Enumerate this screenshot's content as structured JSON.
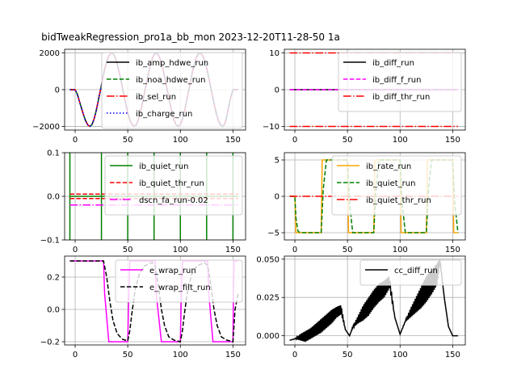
{
  "figure": {
    "title": "bidTweakRegression_pro1a_bb_mon   2023-12-20T11-28-50 1a"
  },
  "chart_data": [
    {
      "type": "line",
      "grid": true,
      "legend_loc": "upper-right",
      "xlim": [
        -10,
        162
      ],
      "ylim": [
        -2200,
        2200
      ],
      "xticks": [
        0,
        50,
        100,
        150
      ],
      "yticks": [
        -2000,
        0,
        2000
      ],
      "series": [
        {
          "name": "ib_amp_hdwe_run",
          "color": "#000000",
          "style": "solid",
          "width": 1.5,
          "x": [
            -5,
            -2,
            0,
            2,
            4,
            6,
            8,
            10,
            12,
            14,
            16,
            18,
            20,
            22,
            24,
            26,
            28,
            30,
            32,
            34,
            36,
            38,
            40,
            42,
            44,
            46,
            48,
            50,
            52,
            54,
            56,
            58,
            60,
            62,
            64,
            66,
            68,
            70,
            72,
            74,
            76,
            78,
            80,
            82,
            84,
            86,
            88,
            90,
            92,
            94,
            96,
            98,
            100,
            102,
            104,
            106,
            108,
            110,
            112,
            114,
            116,
            118,
            120,
            122,
            124,
            126,
            128,
            130,
            132,
            134,
            136,
            138,
            140,
            142,
            144,
            146,
            148,
            150,
            152,
            155
          ],
          "y": [
            0,
            0,
            0,
            -240,
            -620,
            -1000,
            -1380,
            -1700,
            -1920,
            -2000,
            -1900,
            -1600,
            -1150,
            -600,
            -30,
            550,
            1100,
            1550,
            1850,
            2000,
            1960,
            1760,
            1400,
            920,
            380,
            -200,
            -750,
            -1250,
            -1650,
            -1900,
            -2000,
            -1920,
            -1650,
            -1250,
            -720,
            -150,
            430,
            980,
            1450,
            1800,
            1980,
            1990,
            1800,
            1450,
            980,
            420,
            -150,
            -720,
            -1230,
            -1650,
            -1920,
            -2000,
            -1900,
            -1600,
            -1150,
            -600,
            -30,
            550,
            1100,
            1550,
            1850,
            2000,
            1960,
            1760,
            1400,
            920,
            380,
            -200,
            -750,
            -1250,
            -1650,
            -1900,
            -2000,
            -1900,
            -1500,
            -900,
            -400,
            0,
            0,
            0
          ]
        },
        {
          "name": "ib_noa_hdwe_run",
          "color": "#008000",
          "style": "dashed",
          "width": 1.5,
          "same_as": 0
        },
        {
          "name": "ib_sel_run",
          "color": "#ff0000",
          "style": "dashdot",
          "width": 1.5,
          "same_as": 0
        },
        {
          "name": "ib_charge_run",
          "color": "#0000ff",
          "style": "dotted",
          "width": 1.5,
          "same_as": 0
        }
      ]
    },
    {
      "type": "line",
      "grid": true,
      "legend_loc": "center-right",
      "xlim": [
        -10,
        162
      ],
      "ylim": [
        -11,
        11
      ],
      "xticks": [
        0,
        50,
        100,
        150
      ],
      "yticks": [
        -10,
        0,
        10
      ],
      "series": [
        {
          "name": "ib_diff_run",
          "color": "#000000",
          "style": "solid",
          "width": 1.5,
          "x": [
            -5,
            155
          ],
          "y": [
            0,
            0
          ]
        },
        {
          "name": "ib_diff_f_run",
          "color": "#ff00ff",
          "style": "dashed",
          "width": 1.5,
          "x": [
            -5,
            155
          ],
          "y": [
            0,
            0
          ]
        },
        {
          "name": "ib_diff_thr_run",
          "color": "#ff0000",
          "style": "dashdot",
          "width": 1.5,
          "x": [
            -5,
            155
          ],
          "y": [
            10,
            10
          ],
          "mirror": true
        }
      ]
    },
    {
      "type": "line",
      "grid": true,
      "legend_loc": "upper-right",
      "xlim": [
        -10,
        162
      ],
      "ylim": [
        -0.1,
        0.1
      ],
      "xticks": [
        0,
        50,
        100,
        150
      ],
      "yticks": [
        -0.1,
        0.0,
        0.1
      ],
      "series": [
        {
          "name": "ib_quiet_run",
          "color": "#008000",
          "style": "solid",
          "width": 1.5,
          "spikes_x": [
            -5,
            25,
            50,
            75,
            100,
            125,
            150
          ],
          "baseline": 0
        },
        {
          "name": "ib_quiet_thr_run",
          "color": "#ff0000",
          "style": "dashed",
          "width": 1.5,
          "x": [
            -5,
            155
          ],
          "y": [
            0.005,
            0.005
          ],
          "mirror": true
        },
        {
          "name": "dscn_fa_run-0.02",
          "color": "#ff00ff",
          "style": "dashdot",
          "width": 1.5,
          "x": [
            -5,
            155
          ],
          "y": [
            -0.02,
            -0.02
          ]
        }
      ]
    },
    {
      "type": "line",
      "grid": true,
      "legend_loc": "upper-right",
      "xlim": [
        -10,
        162
      ],
      "ylim": [
        -6,
        6
      ],
      "xticks": [
        0,
        50,
        100,
        150
      ],
      "yticks": [
        -5,
        0,
        5
      ],
      "series": [
        {
          "name": "ib_rate_run",
          "color": "#ffa500",
          "style": "solid",
          "width": 1.5,
          "x": [
            -5,
            0,
            0.5,
            1,
            25,
            25.5,
            26,
            50,
            50.5,
            51,
            75,
            75.5,
            76,
            100,
            100.5,
            101,
            125,
            125.5,
            126,
            150,
            150.5,
            151,
            155
          ],
          "y": [
            0,
            0,
            -2.5,
            -5,
            -5,
            0,
            5,
            5,
            0,
            -5,
            -5,
            0,
            5,
            5,
            0,
            -5,
            -5,
            0,
            5,
            5,
            0,
            -5,
            -5
          ]
        },
        {
          "name": "ib_quiet_run",
          "color": "#008000",
          "style": "dashed",
          "width": 1.5,
          "x": [
            -5,
            0,
            1,
            3,
            5,
            25,
            27,
            30,
            50,
            52,
            55,
            75,
            77,
            80,
            100,
            102,
            105,
            125,
            127,
            130,
            150,
            152,
            155
          ],
          "y": [
            0,
            0,
            -3,
            -4.8,
            -5,
            -5,
            1,
            5,
            5,
            -1,
            -5,
            -5,
            1,
            5,
            5,
            -1,
            -5,
            -5,
            1,
            5,
            5,
            -1,
            -5
          ]
        },
        {
          "name": "ib_quiet_thr_run",
          "color": "#ff0000",
          "style": "dashdot",
          "width": 1.5,
          "x": [
            -5,
            155
          ],
          "y": [
            0,
            0
          ]
        }
      ]
    },
    {
      "type": "line",
      "grid": true,
      "legend_loc": "upper-right",
      "xlim": [
        -10,
        162
      ],
      "ylim": [
        -0.22,
        0.33
      ],
      "xticks": [
        0,
        50,
        100,
        150
      ],
      "yticks": [
        -0.2,
        0.0,
        0.2
      ],
      "series": [
        {
          "name": "e_wrap_run",
          "color": "#ff00ff",
          "style": "solid",
          "width": 1.5,
          "x": [
            -5,
            27,
            28,
            32,
            50,
            51,
            52,
            76,
            77,
            82,
            100,
            101,
            102,
            126,
            127,
            131,
            150,
            150.5,
            151,
            155
          ],
          "y": [
            0.3,
            0.3,
            0.1,
            -0.2,
            -0.2,
            0.1,
            0.3,
            0.3,
            0.1,
            -0.2,
            -0.2,
            0.1,
            0.3,
            0.3,
            0.1,
            -0.2,
            -0.2,
            0.1,
            0.3,
            0.3
          ]
        },
        {
          "name": "e_wrap_filt_run",
          "color": "#000000",
          "style": "dashed",
          "width": 1.5,
          "x": [
            -5,
            27,
            30,
            33,
            36,
            40,
            45,
            50,
            52,
            54,
            57,
            61,
            66,
            73,
            76,
            79,
            82,
            85,
            89,
            94,
            100,
            102,
            104,
            107,
            111,
            116,
            123,
            126,
            129,
            132,
            135,
            139,
            144,
            150,
            152,
            155
          ],
          "y": [
            0.3,
            0.3,
            0.2,
            0.05,
            -0.07,
            -0.15,
            -0.185,
            -0.195,
            -0.13,
            -0.02,
            0.12,
            0.22,
            0.27,
            0.29,
            0.27,
            0.15,
            0.0,
            -0.1,
            -0.17,
            -0.19,
            -0.2,
            -0.13,
            -0.02,
            0.12,
            0.22,
            0.27,
            0.29,
            0.27,
            0.15,
            0.0,
            -0.1,
            -0.17,
            -0.19,
            -0.2,
            0.0,
            0.1
          ]
        }
      ]
    },
    {
      "type": "line",
      "grid": true,
      "legend_loc": "upper-right",
      "xlim": [
        -10,
        162
      ],
      "ylim": [
        -0.006,
        0.052
      ],
      "xticks": [
        0,
        50,
        100,
        150
      ],
      "yticks": [
        0.0,
        0.025,
        0.05
      ],
      "series": [
        {
          "name": "cc_diff_run",
          "color": "#000000",
          "style": "solid",
          "width": 1.5,
          "envelope": [
            [
              -5,
              -0.003,
              -0.003
            ],
            [
              0,
              -0.002,
              -0.002
            ],
            [
              5,
              -0.003,
              0.001
            ],
            [
              10,
              -0.004,
              0.003
            ],
            [
              15,
              -0.002,
              0.005
            ],
            [
              20,
              0.0,
              0.008
            ],
            [
              25,
              0.002,
              0.011
            ],
            [
              30,
              0.005,
              0.014
            ],
            [
              35,
              0.008,
              0.017
            ],
            [
              40,
              0.012,
              0.019
            ],
            [
              44,
              0.014,
              0.02
            ],
            [
              48,
              0.004,
              0.004
            ],
            [
              52,
              0.0,
              0.0
            ],
            [
              55,
              0.005,
              0.006
            ],
            [
              60,
              0.008,
              0.013
            ],
            [
              65,
              0.01,
              0.02
            ],
            [
              70,
              0.013,
              0.025
            ],
            [
              75,
              0.018,
              0.03
            ],
            [
              80,
              0.022,
              0.034
            ],
            [
              85,
              0.025,
              0.036
            ],
            [
              90,
              0.031,
              0.039
            ],
            [
              95,
              0.012,
              0.012
            ],
            [
              100,
              0.001,
              0.001
            ],
            [
              105,
              0.009,
              0.01
            ],
            [
              110,
              0.012,
              0.018
            ],
            [
              115,
              0.015,
              0.025
            ],
            [
              120,
              0.018,
              0.032
            ],
            [
              125,
              0.022,
              0.039
            ],
            [
              130,
              0.027,
              0.043
            ],
            [
              135,
              0.033,
              0.047
            ],
            [
              138,
              0.048,
              0.05
            ],
            [
              142,
              0.025,
              0.025
            ],
            [
              146,
              0.006,
              0.006
            ],
            [
              150,
              0.0,
              0.0
            ],
            [
              155,
              0.0,
              0.0
            ]
          ]
        }
      ]
    }
  ]
}
